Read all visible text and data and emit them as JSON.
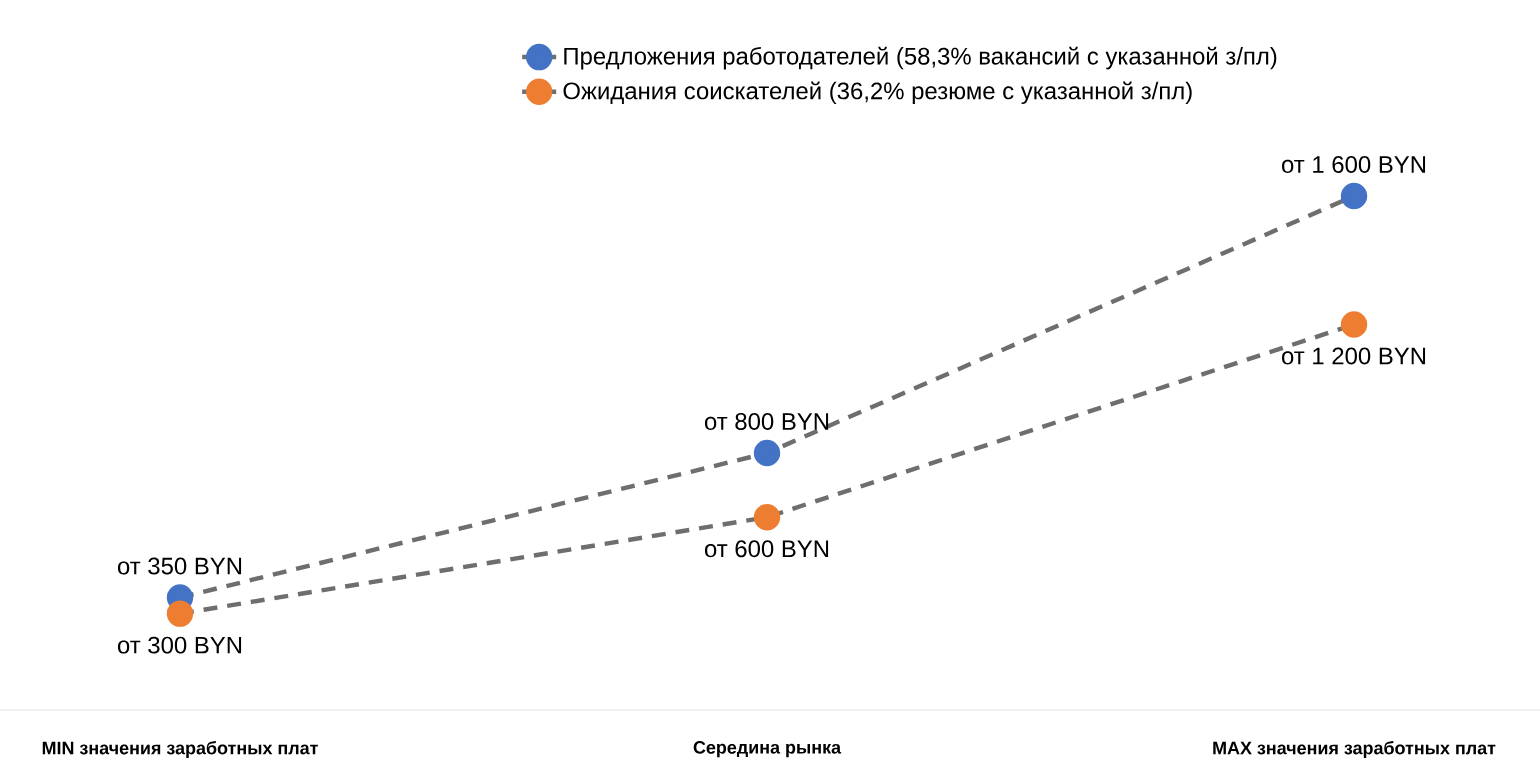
{
  "chart_data": {
    "type": "line",
    "categories": [
      "MIN значения заработных плат",
      "Середина рынка",
      "MAX значения заработных плат"
    ],
    "series": [
      {
        "name": "Предложения работодателей (58,3% вакансий с указанной з/пл)",
        "color": "#4472c4",
        "values": [
          350,
          800,
          1600
        ],
        "value_labels": [
          "от 350 BYN",
          "от 800 BYN",
          "от 1 600 BYN"
        ]
      },
      {
        "name": "Ожидания соискателей (36,2% резюме с указанной з/пл)",
        "color": "#ed7d31",
        "values": [
          300,
          600,
          1200
        ],
        "value_labels": [
          "от 300 BYN",
          "от 600 BYN",
          "от 1 200 BYN"
        ]
      }
    ],
    "marker": "circle",
    "line_style": "dashed",
    "legend": "top"
  }
}
